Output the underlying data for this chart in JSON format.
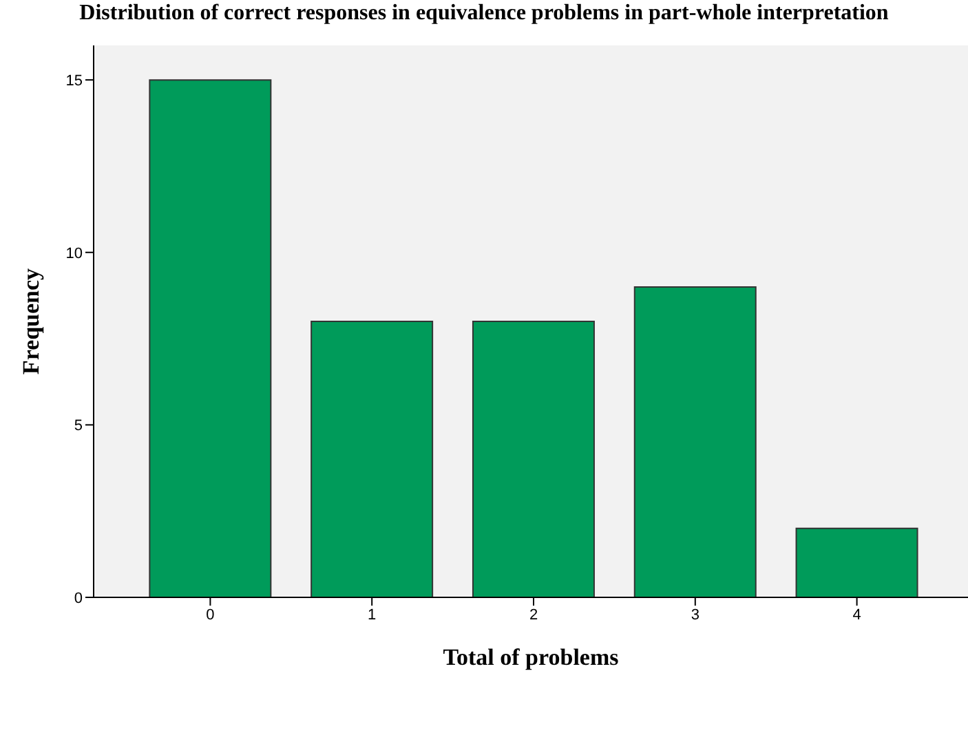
{
  "chart_data": {
    "type": "bar",
    "title": "Distribution of correct responses in equivalence problems in part-whole interpretation",
    "xlabel": "Total of problems",
    "ylabel": "Frequency",
    "categories": [
      "0",
      "1",
      "2",
      "3",
      "4"
    ],
    "values": [
      15,
      8,
      8,
      9,
      2
    ],
    "color": "#009b5a",
    "ylim": [
      0,
      16
    ],
    "yticks": [
      0,
      5,
      10,
      15
    ],
    "grid": false,
    "legend": false
  }
}
